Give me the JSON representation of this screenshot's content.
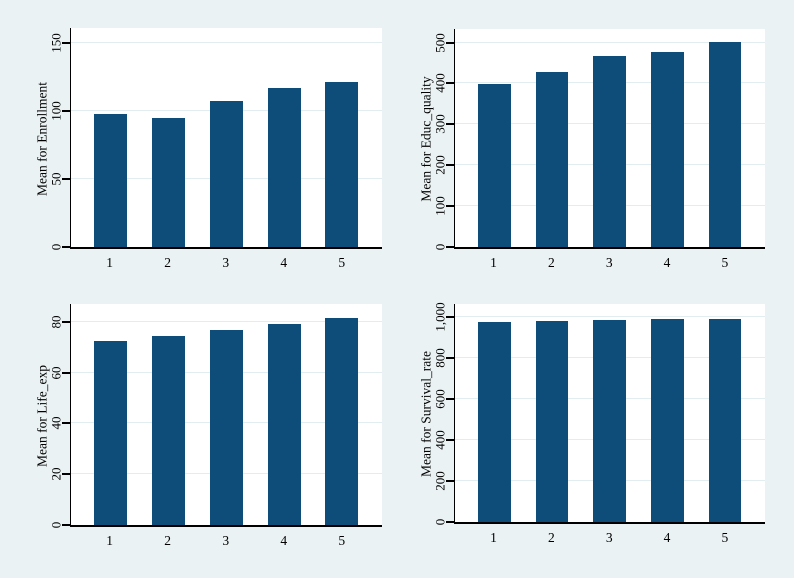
{
  "colors": {
    "background": "#eaf2f3",
    "plot_background": "#ffffff",
    "bar": "#0e4d7a",
    "grid": "#e2edf2",
    "axis": "#000000",
    "text": "#000000"
  },
  "chart_data": [
    {
      "type": "bar",
      "ylabel": "Mean for Enrollment",
      "xlabel": "",
      "categories": [
        "1",
        "2",
        "3",
        "4",
        "5"
      ],
      "values": [
        98,
        95,
        107,
        117,
        121
      ],
      "yticks": [
        0,
        50,
        100,
        150
      ],
      "ytick_labels": [
        "0",
        "50",
        "100",
        "150"
      ],
      "ylim": [
        0,
        161
      ],
      "grid": true,
      "legend": "none"
    },
    {
      "type": "bar",
      "ylabel": "Mean for Educ_quality",
      "xlabel": "",
      "categories": [
        "1",
        "2",
        "3",
        "4",
        "5"
      ],
      "values": [
        398,
        428,
        466,
        478,
        502
      ],
      "yticks": [
        0,
        100,
        200,
        300,
        400,
        500
      ],
      "ytick_labels": [
        "0",
        "100",
        "200",
        "300",
        "400",
        "500"
      ],
      "ylim": [
        0,
        533
      ],
      "grid": true,
      "legend": "none"
    },
    {
      "type": "bar",
      "ylabel": "Mean for Life_exp",
      "xlabel": "",
      "categories": [
        "1",
        "2",
        "3",
        "4",
        "5"
      ],
      "values": [
        72.4,
        74.3,
        76.7,
        79,
        81.3
      ],
      "yticks": [
        0,
        20,
        40,
        60,
        80
      ],
      "ytick_labels": [
        "0",
        "20",
        "40",
        "60",
        "80"
      ],
      "ylim": [
        0,
        87
      ],
      "grid": true,
      "legend": "none"
    },
    {
      "type": "bar",
      "ylabel": "Mean for Survival_rate",
      "xlabel": "",
      "categories": [
        "1",
        "2",
        "3",
        "4",
        "5"
      ],
      "values": [
        976,
        981,
        988,
        989,
        992
      ],
      "yticks": [
        0,
        200,
        400,
        600,
        800,
        1000
      ],
      "ytick_labels": [
        "0",
        "200",
        "400",
        "600",
        "800",
        "1,000"
      ],
      "ylim": [
        0,
        1064
      ],
      "grid": true,
      "legend": "none"
    }
  ]
}
